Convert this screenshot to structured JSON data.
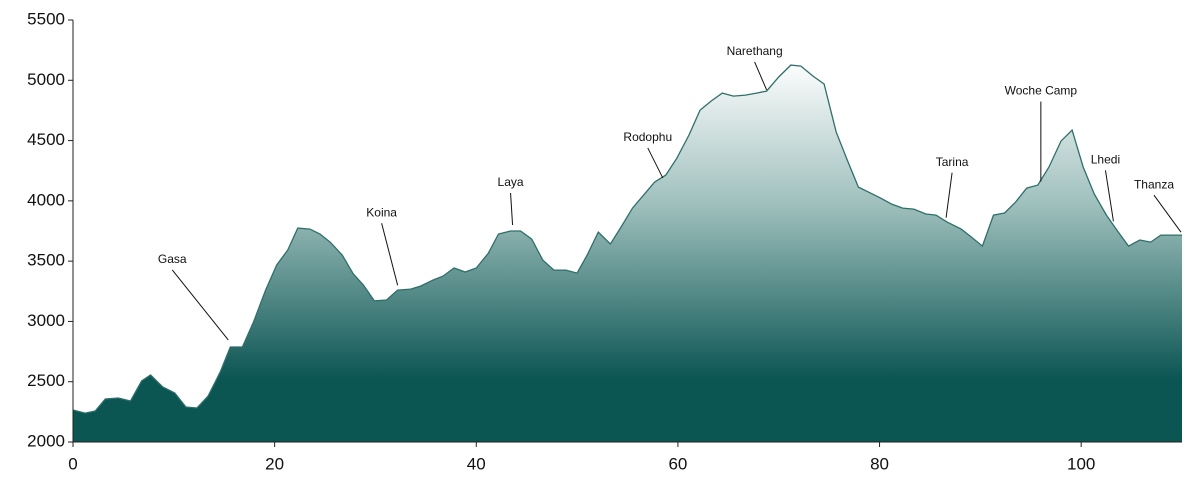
{
  "chart_data": {
    "type": "area",
    "x": [
      0,
      1.2,
      2.2,
      3.2,
      4.5,
      5.7,
      6.8,
      7.7,
      8.9,
      10.1,
      11.2,
      12.3,
      13.4,
      14.6,
      15.6,
      16.8,
      17.9,
      19.1,
      20.2,
      21.3,
      22.3,
      23.5,
      24.5,
      25.5,
      26.7,
      27.8,
      28.8,
      29.9,
      31.1,
      32.2,
      33.5,
      34.5,
      35.7,
      36.7,
      37.8,
      38.9,
      40.0,
      41.2,
      42.2,
      43.4,
      44.4,
      45.5,
      46.6,
      47.7,
      48.9,
      50.0,
      51.0,
      52.1,
      53.3,
      54.3,
      55.5,
      56.6,
      57.7,
      58.8,
      59.9,
      61.1,
      62.2,
      63.3,
      64.4,
      65.5,
      66.7,
      67.8,
      68.8,
      70.0,
      71.2,
      72.2,
      73.4,
      74.5,
      75.7,
      76.8,
      77.9,
      78.9,
      80.1,
      81.2,
      82.3,
      83.4,
      84.6,
      85.6,
      86.7,
      88.1,
      89.1,
      90.2,
      91.3,
      92.4,
      93.5,
      94.6,
      95.7,
      96.8,
      98.0,
      99.1,
      100.2,
      101.3,
      102.5,
      103.6,
      104.7,
      105.8,
      106.9,
      107.9,
      110.0
    ],
    "values": [
      2265,
      2240,
      2257,
      2357,
      2365,
      2340,
      2506,
      2556,
      2456,
      2406,
      2290,
      2282,
      2381,
      2580,
      2788,
      2788,
      2995,
      3260,
      3468,
      3592,
      3774,
      3766,
      3725,
      3658,
      3551,
      3393,
      3302,
      3170,
      3178,
      3260,
      3268,
      3294,
      3343,
      3376,
      3443,
      3410,
      3443,
      3567,
      3725,
      3750,
      3750,
      3683,
      3509,
      3426,
      3426,
      3401,
      3551,
      3741,
      3642,
      3774,
      3940,
      4048,
      4156,
      4214,
      4355,
      4546,
      4753,
      4828,
      4894,
      4869,
      4877,
      4894,
      4910,
      5027,
      5126,
      5118,
      5035,
      4969,
      4570,
      4338,
      4114,
      4073,
      4023,
      3973,
      3940,
      3932,
      3891,
      3882,
      3824,
      3766,
      3700,
      3625,
      3882,
      3899,
      3990,
      4106,
      4131,
      4280,
      4496,
      4587,
      4280,
      4056,
      3882,
      3750,
      3625,
      3675,
      3658,
      3716,
      3716
    ],
    "color": "#0b5553",
    "line_color": "#2f6f6a",
    "xlim": [
      0,
      110
    ],
    "xticks": [
      0,
      20,
      40,
      60,
      80,
      100
    ],
    "ylim": [
      2000,
      5500
    ],
    "yticks": [
      2000,
      2500,
      3000,
      3500,
      4000,
      4500,
      5000,
      5500
    ],
    "annotations": [
      {
        "text": "Gasa",
        "x": 15.4,
        "y": 2846
      },
      {
        "text": "Koina",
        "x": 32.2,
        "y": 3300
      },
      {
        "text": "Laya",
        "x": 43.6,
        "y": 3800
      },
      {
        "text": "Rodophu",
        "x": 58.5,
        "y": 4190
      },
      {
        "text": "Narethang",
        "x": 68.8,
        "y": 4920
      },
      {
        "text": "Tarina",
        "x": 86.6,
        "y": 3860
      },
      {
        "text": "Woche Camp",
        "x": 96.0,
        "y": 4160
      },
      {
        "text": "Lhedi",
        "x": 103.2,
        "y": 3830
      },
      {
        "text": "Thanza",
        "x": 109.9,
        "y": 3740
      }
    ]
  }
}
